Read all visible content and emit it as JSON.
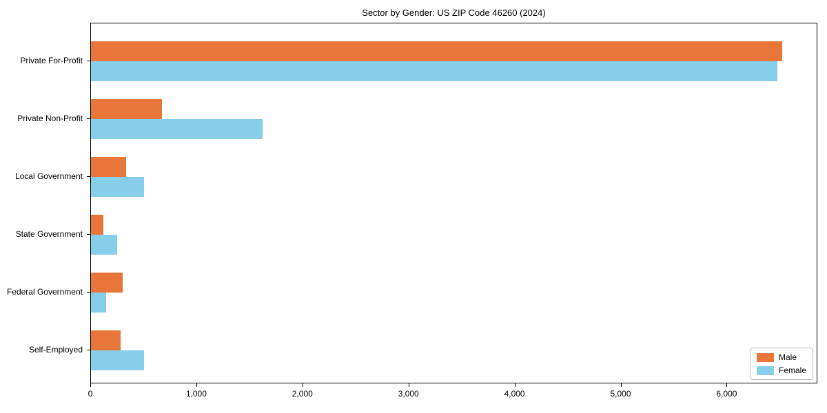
{
  "title": "Sector by Gender: US ZIP Code 46260 (2024)",
  "chart_data": {
    "type": "bar",
    "orientation": "horizontal",
    "title": "Sector by Gender: US ZIP Code 46260 (2024)",
    "categories": [
      "Private For-Profit",
      "Private Non-Profit",
      "Local Government",
      "State Government",
      "Federal Government",
      "Self-Employed"
    ],
    "series": [
      {
        "name": "Male",
        "color": "#E8763B",
        "values": [
          6520,
          670,
          330,
          120,
          300,
          280
        ]
      },
      {
        "name": "Female",
        "color": "#87CEEB",
        "values": [
          6470,
          1620,
          500,
          250,
          145,
          500
        ]
      }
    ],
    "xlabel": "",
    "ylabel": "",
    "xlim": [
      0,
      6855
    ],
    "xticks": [
      0,
      1000,
      2000,
      3000,
      4000,
      5000,
      6000
    ],
    "xtick_labels": [
      "0",
      "1,000",
      "2,000",
      "3,000",
      "4,000",
      "5,000",
      "6,000"
    ],
    "grid": false,
    "legend_position": "lower right",
    "legend": [
      "Male",
      "Female"
    ]
  }
}
